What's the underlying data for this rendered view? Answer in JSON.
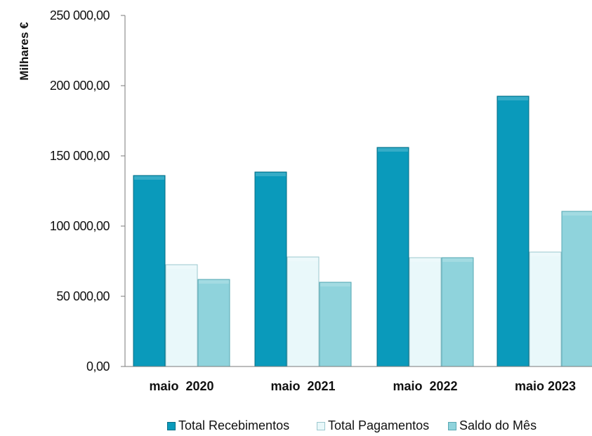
{
  "chart_data": {
    "type": "bar",
    "ylabel": "Milhares €",
    "xlabel": "",
    "ylim": [
      0,
      250000
    ],
    "yticks": [
      0,
      50000,
      100000,
      150000,
      200000,
      250000
    ],
    "ytick_labels": [
      "0,00",
      "50 000,00",
      "100 000,00",
      "150 000,00",
      "200 000,00",
      "250 000,00"
    ],
    "categories": [
      "maio  2020",
      "maio  2021",
      "maio  2022",
      "maio 2023"
    ],
    "series": [
      {
        "name": "Total Recebimentos",
        "color": "#0a9abb",
        "edge": "#066e86",
        "values": [
          136000,
          138500,
          156000,
          192500
        ]
      },
      {
        "name": "Total Pagamentos",
        "color": "#e9f8fa",
        "edge": "#9cc8cf",
        "values": [
          72500,
          78000,
          77500,
          81500
        ]
      },
      {
        "name": "Saldo do Mês",
        "color": "#8fd3dc",
        "edge": "#5aa8b3",
        "values": [
          62000,
          60000,
          77500,
          110500
        ]
      }
    ],
    "grid": false,
    "legend_position": "bottom"
  }
}
